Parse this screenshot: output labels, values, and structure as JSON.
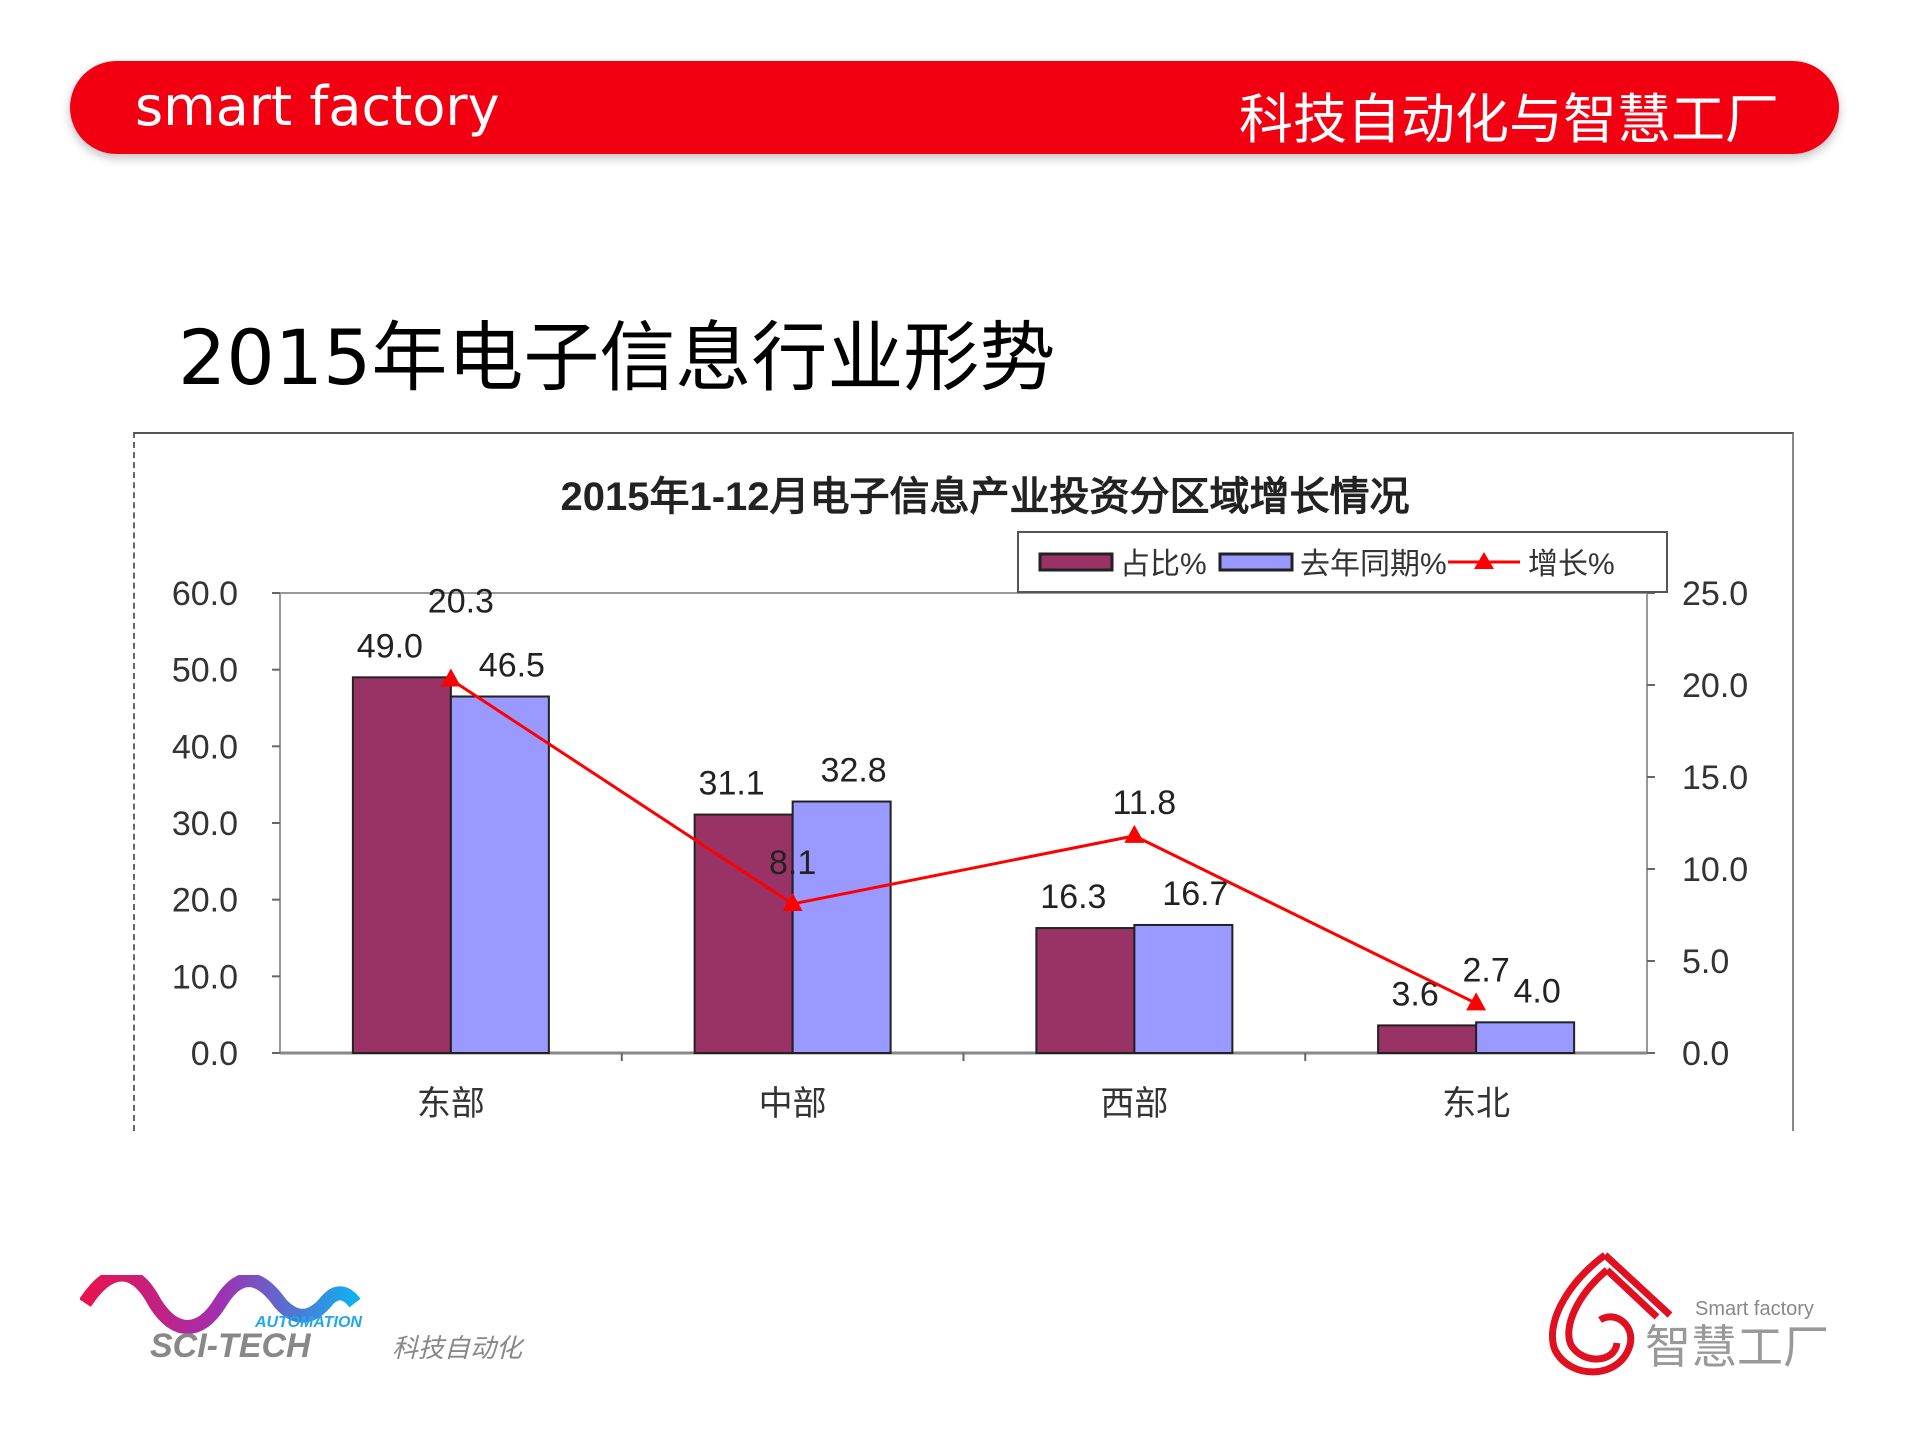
{
  "header": {
    "left_text": "smart factory",
    "right_text": "科技自动化与智慧工厂"
  },
  "page_title": "2015年电子信息行业形势",
  "chart_data": {
    "type": "bar",
    "title": "2015年1-12月电子信息产业投资分区域增长情况",
    "categories": [
      "东部",
      "中部",
      "西部",
      "东北"
    ],
    "series": [
      {
        "name": "占比%",
        "type": "bar",
        "axis": "left",
        "color": "#993366",
        "values": [
          49.0,
          31.1,
          16.3,
          3.6
        ]
      },
      {
        "name": "去年同期%",
        "type": "bar",
        "axis": "left",
        "color": "#9999ff",
        "values": [
          46.5,
          32.8,
          16.7,
          4.0
        ]
      },
      {
        "name": "增长%",
        "type": "line",
        "axis": "right",
        "color": "#ff0000",
        "marker": "triangle",
        "values": [
          20.3,
          8.1,
          11.8,
          2.7
        ]
      }
    ],
    "ylim": [
      0,
      60
    ],
    "y_ticks": [
      "0.0",
      "10.0",
      "20.0",
      "30.0",
      "40.0",
      "50.0",
      "60.0"
    ],
    "y2lim": [
      0,
      25
    ],
    "y2_ticks": [
      "0.0",
      "5.0",
      "10.0",
      "15.0",
      "20.0",
      "25.0"
    ],
    "legend": "top-right",
    "grid": false
  },
  "logos": {
    "left": {
      "sub": "AUTOMATION",
      "main": "SCI-TECH",
      "cn": "科技自动化"
    },
    "right": {
      "en": "Smart factory",
      "cn": "智慧工厂"
    }
  }
}
